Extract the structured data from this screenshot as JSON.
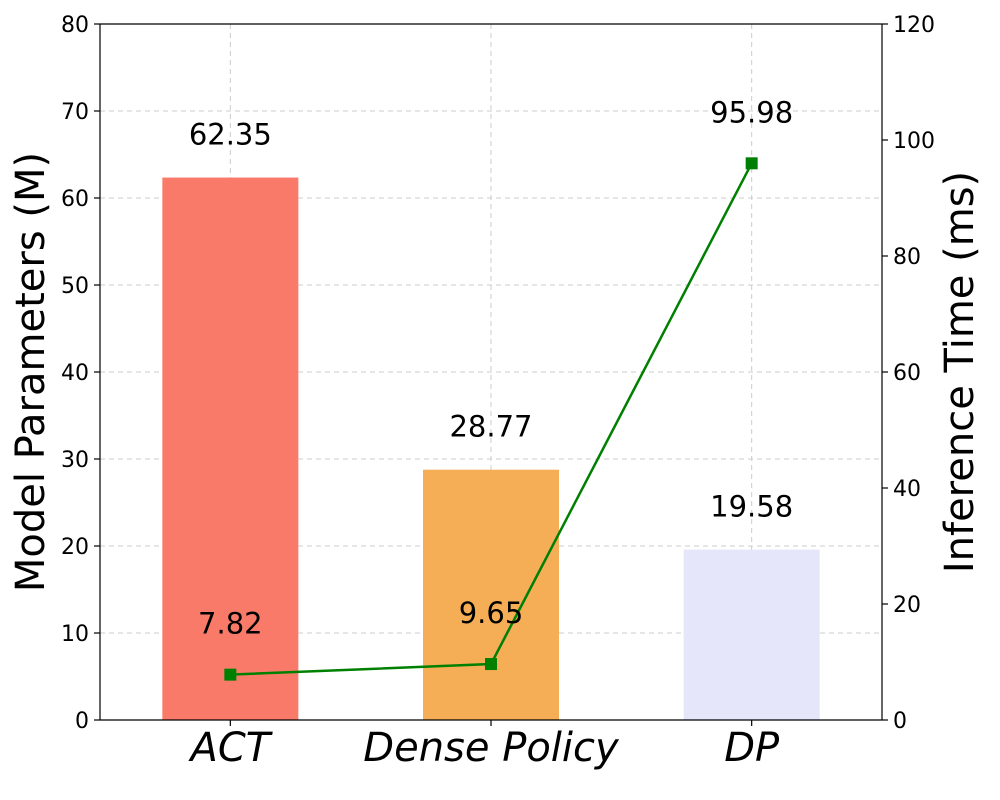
{
  "chart_data": {
    "type": "bar",
    "categories": [
      "ACT",
      "Dense Policy",
      "DP"
    ],
    "bar_series": {
      "values": [
        62.35,
        28.77,
        19.58
      ],
      "colors": [
        "#fa7a6a",
        "#f5ae55",
        "#e6e6fa"
      ],
      "labels": [
        "62.35",
        "28.77",
        "19.58"
      ]
    },
    "line_series": {
      "values": [
        7.82,
        9.65,
        95.98
      ],
      "labels": [
        "7.82",
        "9.65",
        "95.98"
      ],
      "color": "#008000",
      "marker": "square",
      "axis": "right"
    },
    "ylabel": "Model Parameters (M)",
    "y2label": "Inference Time (ms)",
    "ylim": [
      0,
      80
    ],
    "y2lim": [
      0,
      120
    ],
    "yticks": [
      0,
      10,
      20,
      30,
      40,
      50,
      60,
      70,
      80
    ],
    "y2ticks": [
      0,
      20,
      40,
      60,
      80,
      100,
      120
    ],
    "grid": true,
    "grid_style": "dashed"
  }
}
